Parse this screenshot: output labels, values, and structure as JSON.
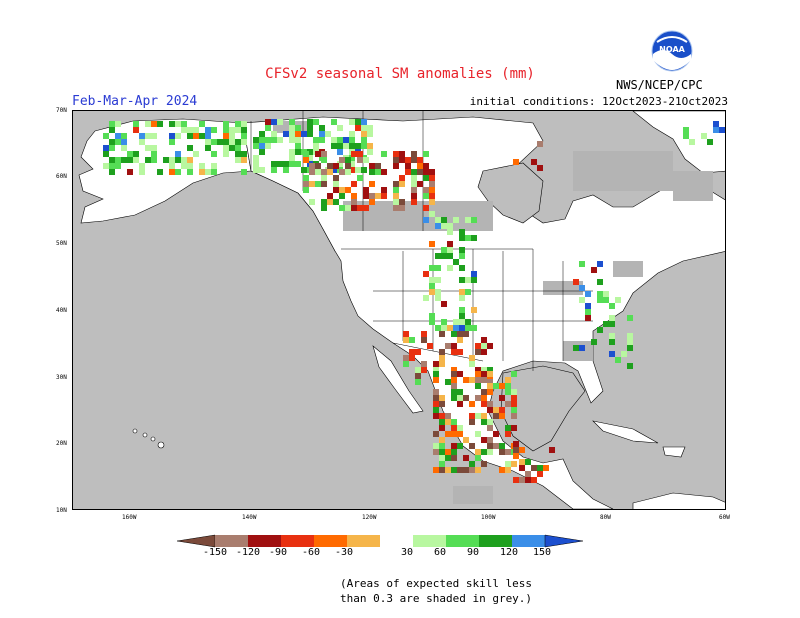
{
  "title": "CFSv2 seasonal SM anomalies (mm)",
  "season": "Feb-Mar-Apr 2024",
  "initial_conditions": "initial conditions: 12Oct2023-21Oct2023",
  "agency": "NWS/NCEP/CPC",
  "logo_text": "NOAA",
  "lat_labels": [
    "70N",
    "60N",
    "50N",
    "40N",
    "30N",
    "20N",
    "10N"
  ],
  "lon_labels": [
    "160W",
    "140W",
    "120W",
    "100W",
    "80W",
    "60W"
  ],
  "legend": {
    "thresholds": [
      "-150",
      "-120",
      "-90",
      "-60",
      "-30",
      "30",
      "60",
      "90",
      "120",
      "150"
    ],
    "colors": [
      "#7b4a3a",
      "#a97d6e",
      "#a01010",
      "#e83010",
      "#ff6a00",
      "#f5b54a",
      "#ffffff",
      "#b8f7a0",
      "#55dd55",
      "#1ea01e",
      "#3a8ee8",
      "#1c4fcf"
    ]
  },
  "footnote": [
    "(Areas of expected skill less",
    "than 0.3 are shaded in grey.)"
  ],
  "colors": {
    "ocean": "#bebebe",
    "land": "#ffffff",
    "low_skill": "#b4b4b4",
    "title": "#e8232b",
    "season": "#2a3bd3"
  }
}
